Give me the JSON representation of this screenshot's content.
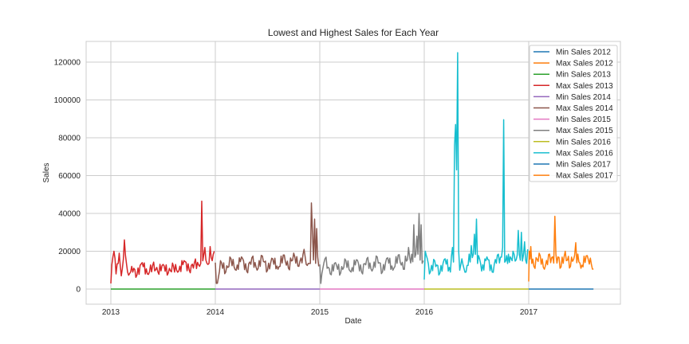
{
  "chart_data": {
    "type": "line",
    "title": "Lowest and Highest Sales for Each Year",
    "xlabel": "Date",
    "ylabel": "Sales",
    "xlim": [
      2012.77,
      2017.88
    ],
    "ylim": [
      -6000,
      131000
    ],
    "x_ticks": [
      "2013",
      "2014",
      "2015",
      "2016",
      "2017"
    ],
    "y_ticks": [
      "0",
      "20000",
      "40000",
      "60000",
      "80000",
      "100000",
      "120000"
    ],
    "grid": true,
    "legend_position": "upper right",
    "series": [
      {
        "name": "Min Sales 2012",
        "color": "#1f77b4",
        "x": [],
        "y": []
      },
      {
        "name": "Max Sales 2012",
        "color": "#ff7f0e",
        "x": [],
        "y": []
      },
      {
        "name": "Min Sales 2013",
        "color": "#2ca02c",
        "x": [
          2013.0,
          2013.999
        ],
        "y": [
          0,
          0
        ]
      },
      {
        "name": "Max Sales 2013",
        "color": "#d62728",
        "x": [
          2013.0,
          2013.01,
          2013.03,
          2013.05,
          2013.08,
          2013.1,
          2013.13,
          2013.16,
          2013.2,
          2013.25,
          2013.3,
          2013.35,
          2013.4,
          2013.45,
          2013.5,
          2013.55,
          2013.6,
          2013.65,
          2013.7,
          2013.75,
          2013.8,
          2013.85,
          2013.87,
          2013.9,
          2013.93,
          2013.95,
          2013.97,
          2013.99
        ],
        "y": [
          1000,
          13000,
          20000,
          8000,
          19000,
          7000,
          26000,
          9000,
          12000,
          7500,
          14000,
          8000,
          12500,
          9000,
          13000,
          8500,
          12000,
          9500,
          15000,
          10000,
          14000,
          12000,
          46500,
          22000,
          13000,
          22500,
          15000,
          20000
        ]
      },
      {
        "name": "Min Sales 2014",
        "color": "#9467bd",
        "x": [
          2014.0,
          2014.999
        ],
        "y": [
          0,
          0
        ]
      },
      {
        "name": "Max Sales 2014",
        "color": "#8c564b",
        "x": [
          2014.0,
          2014.01,
          2014.05,
          2014.1,
          2014.15,
          2014.2,
          2014.25,
          2014.3,
          2014.35,
          2014.4,
          2014.45,
          2014.5,
          2014.55,
          2014.6,
          2014.65,
          2014.7,
          2014.75,
          2014.8,
          2014.85,
          2014.88,
          2014.92,
          2014.93,
          2014.95,
          2014.97,
          2014.99
        ],
        "y": [
          14000,
          1500,
          15000,
          9000,
          16000,
          10000,
          17000,
          9500,
          16500,
          10000,
          17500,
          10000,
          16000,
          10500,
          18000,
          11000,
          19000,
          12000,
          21000,
          12500,
          45500,
          30000,
          37000,
          32000,
          12000
        ]
      },
      {
        "name": "Min Sales 2015",
        "color": "#e377c2",
        "x": [
          2015.0,
          2015.999
        ],
        "y": [
          0,
          0
        ]
      },
      {
        "name": "Max Sales 2015",
        "color": "#7f7f7f",
        "x": [
          2015.0,
          2015.01,
          2015.05,
          2015.1,
          2015.15,
          2015.2,
          2015.25,
          2015.3,
          2015.35,
          2015.4,
          2015.45,
          2015.5,
          2015.55,
          2015.6,
          2015.65,
          2015.7,
          2015.75,
          2015.8,
          2015.85,
          2015.9,
          2015.93,
          2015.95,
          2015.97,
          2015.99
        ],
        "y": [
          13000,
          3000,
          16000,
          8000,
          14000,
          8500,
          15000,
          9000,
          15500,
          9000,
          16000,
          9500,
          17000,
          9000,
          16500,
          10000,
          18000,
          10500,
          22000,
          34000,
          28000,
          40000,
          34000,
          15000
        ]
      },
      {
        "name": "Min Sales 2016",
        "color": "#bcbd22",
        "x": [
          2016.0,
          2016.999
        ],
        "y": [
          0,
          0
        ]
      },
      {
        "name": "Max Sales 2016",
        "color": "#17becf",
        "x": [
          2016.0,
          2016.01,
          2016.05,
          2016.1,
          2016.15,
          2016.2,
          2016.25,
          2016.27,
          2016.29,
          2016.3,
          2016.31,
          2016.32,
          2016.33,
          2016.34,
          2016.36,
          2016.4,
          2016.45,
          2016.48,
          2016.5,
          2016.55,
          2016.6,
          2016.65,
          2016.7,
          2016.75,
          2016.76,
          2016.78,
          2016.85,
          2016.9,
          2016.93,
          2016.96,
          2016.99
        ],
        "y": [
          5000,
          20000,
          8000,
          15000,
          8500,
          16000,
          9000,
          22000,
          76000,
          87000,
          63000,
          125000,
          20000,
          10000,
          16000,
          9000,
          23000,
          29000,
          37000,
          9500,
          17000,
          9000,
          18000,
          22000,
          89500,
          15000,
          20000,
          31000,
          30000,
          25000,
          21000
        ]
      },
      {
        "name": "Min Sales 2017",
        "color": "#1f77b4",
        "x": [
          2017.0,
          2017.62
        ],
        "y": [
          0,
          0
        ]
      },
      {
        "name": "Max Sales 2017",
        "color": "#ff7f0e",
        "x": [
          2017.0,
          2017.005,
          2017.02,
          2017.05,
          2017.1,
          2017.15,
          2017.2,
          2017.25,
          2017.3,
          2017.35,
          2017.4,
          2017.45,
          2017.5,
          2017.55,
          2017.6,
          2017.62
        ],
        "y": [
          4000,
          20000,
          22500,
          12000,
          19000,
          10500,
          18500,
          38500,
          11000,
          20000,
          12000,
          24500,
          11000,
          17500,
          13000,
          10500
        ]
      }
    ]
  }
}
